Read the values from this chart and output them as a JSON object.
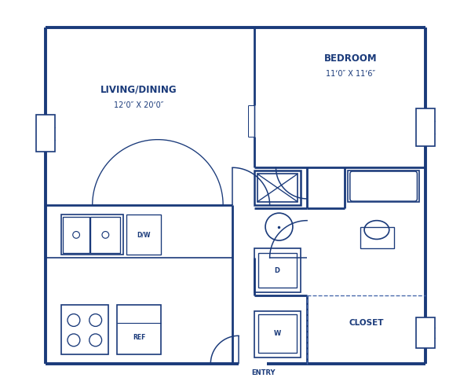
{
  "bg_color": "#ffffff",
  "wall_color": "#1a3a7a",
  "dashed_color": "#4466aa",
  "text_color": "#1a3a7a",
  "title_living": "LIVING/DINING",
  "dim_living": "12‘0″ X 20‘0″",
  "title_bedroom": "BEDROOM",
  "dim_bedroom": "11‘0″ X 11‘6″",
  "label_closet": "CLOSET",
  "label_entry": "ENTRY",
  "label_d": "D",
  "label_w": "W",
  "label_ref": "REF",
  "label_dw": "D/W"
}
